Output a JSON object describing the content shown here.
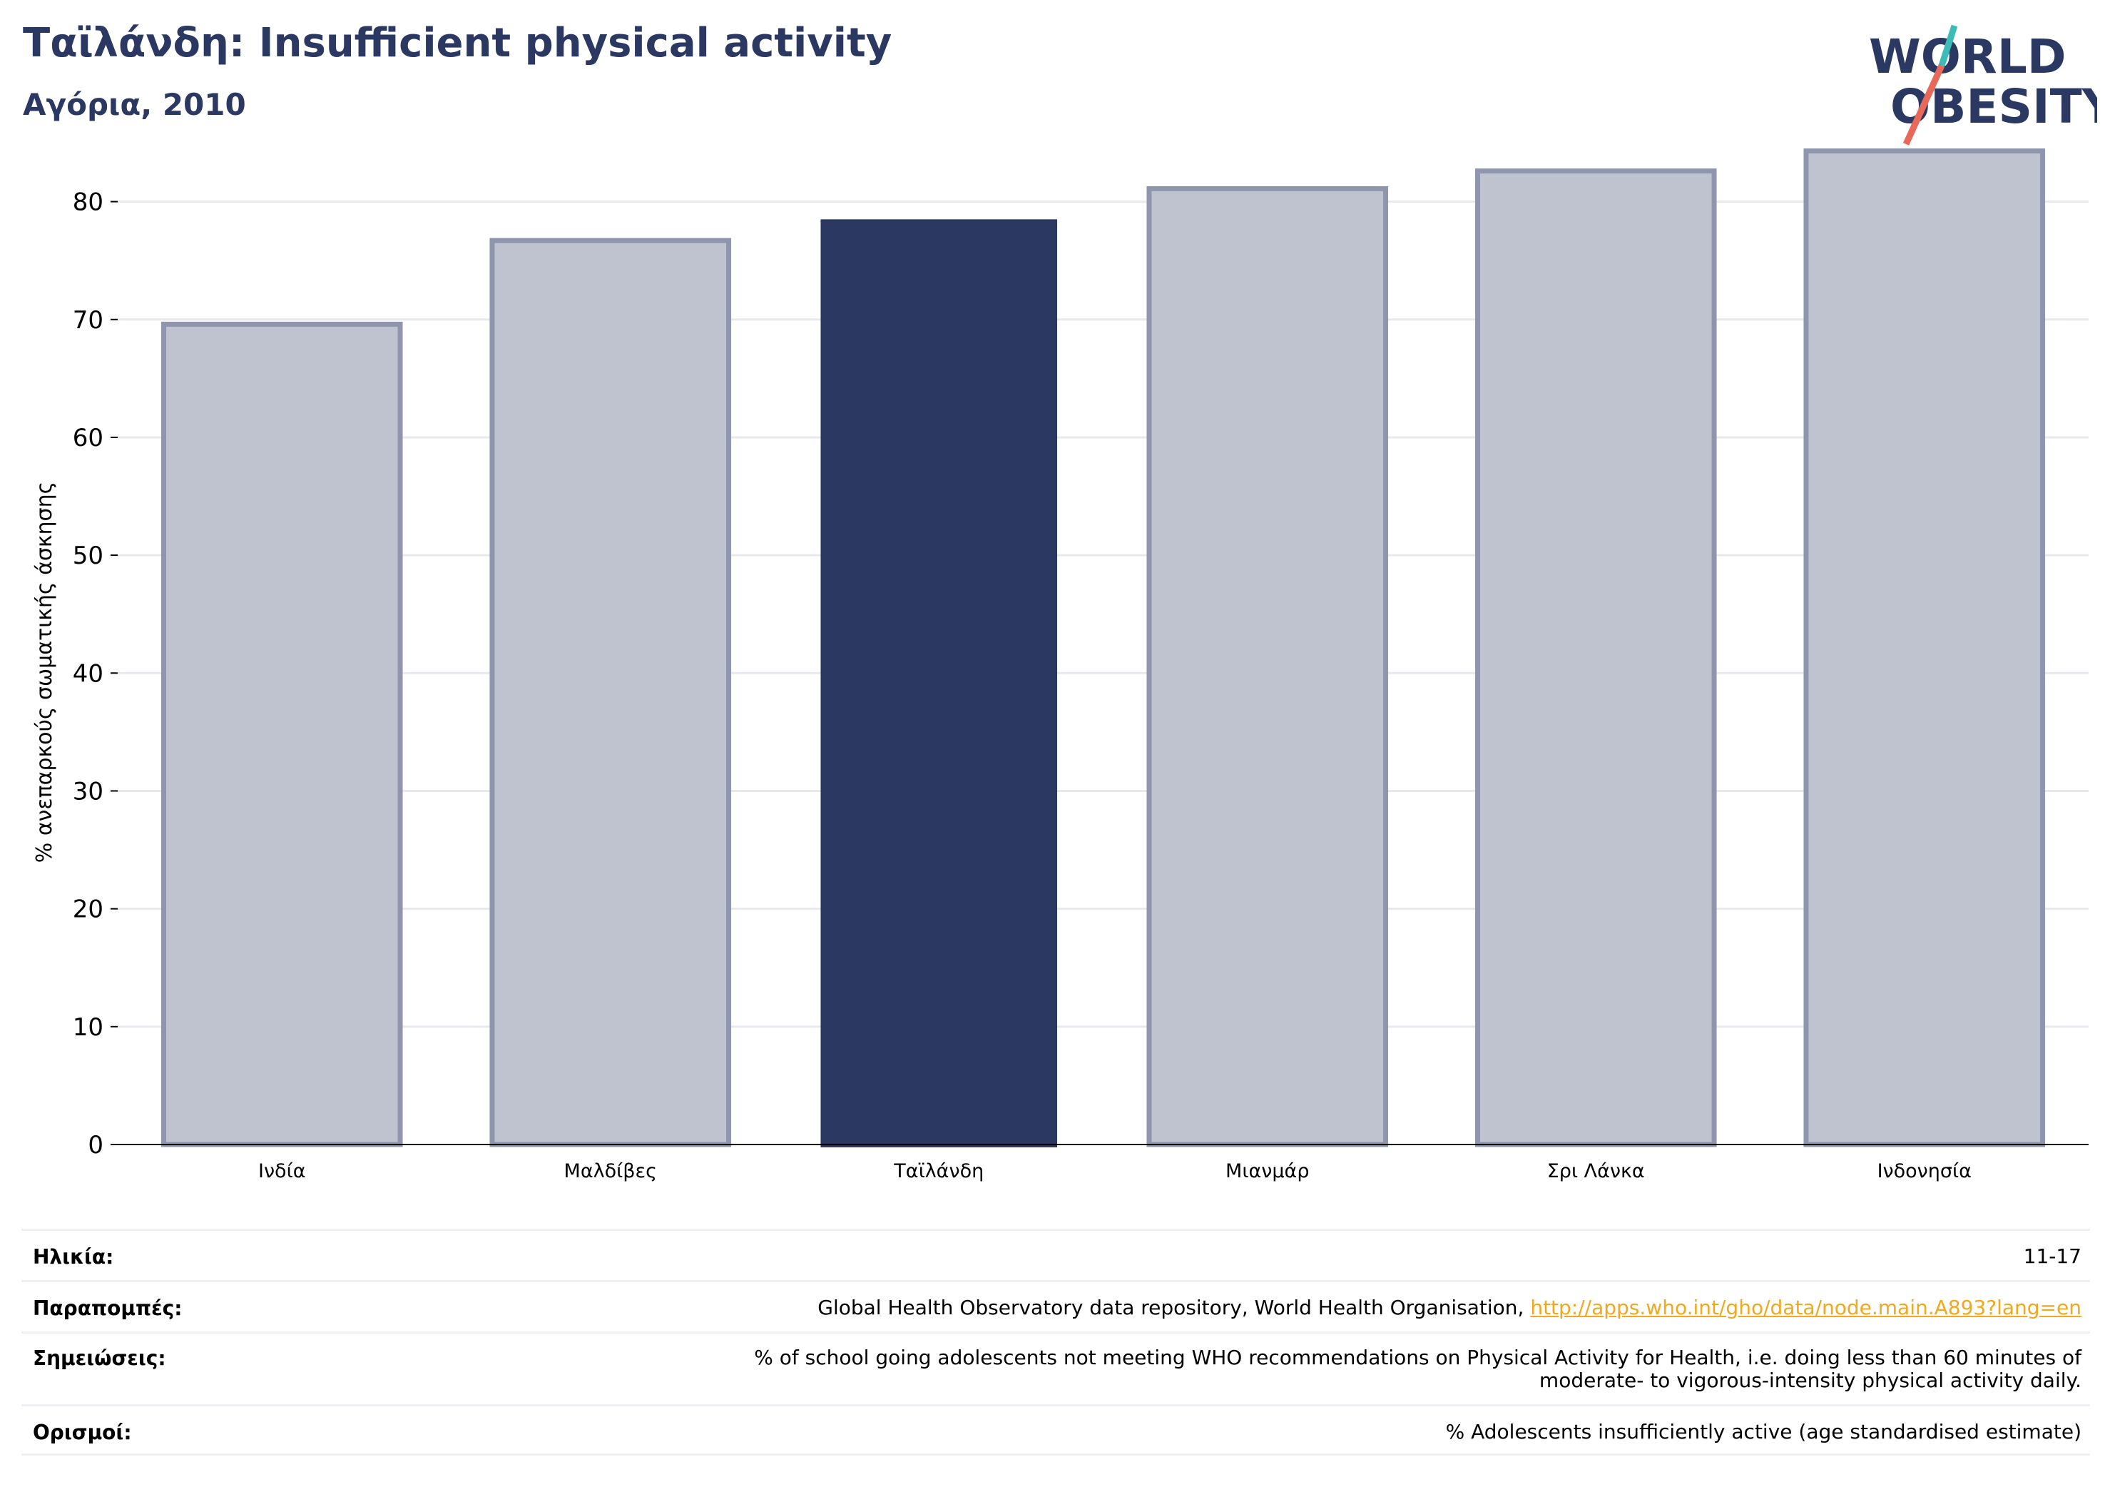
{
  "header": {
    "title": "Ταϊλάνδη: Insufficient physical activity",
    "subtitle": "Αγόρια, 2010"
  },
  "logo": {
    "line1": "WORLD",
    "line2": "OBESITY",
    "colors": {
      "text": "#2b3862",
      "slash_teal": "#3cbcb4",
      "slash_red": "#e8685a"
    }
  },
  "colors": {
    "highlight": "#2b3862",
    "bar": "#bfc3cf",
    "bar_border": "#8e95ad",
    "grid": "#e8e9ee",
    "axis": "#000000"
  },
  "chart_data": {
    "type": "bar",
    "categories": [
      "Ινδία",
      "Μαλδίβες",
      "Ταϊλάνδη",
      "Μιανμάρ",
      "Σρι Λάνκα",
      "Ινδονησία"
    ],
    "values": [
      69.6,
      76.7,
      78.5,
      81.1,
      82.6,
      84.3
    ],
    "highlight": "Ταϊλάνδη",
    "ylabel": "% ανεπαρκούς σωματικής άσκησης",
    "ylim": [
      0,
      85
    ],
    "yticks": [
      0,
      10,
      20,
      30,
      40,
      50,
      60,
      70,
      80
    ],
    "grid": true
  },
  "info": {
    "age_label": "Ηλικία:",
    "age_value": "11-17",
    "ref_label": "Παραπομπές:",
    "ref_text": "Global Health Observatory data repository, World Health Organisation, ",
    "ref_link": "http://apps.who.int/gho/data/node.main.A893?lang=en",
    "notes_label": "Σημειώσεις:",
    "notes_line1": "% of school going adolescents not meeting WHO recommendations on Physical Activity for Health, i.e. doing less than 60 minutes of",
    "notes_line2": "moderate- to vigorous-intensity physical activity daily.",
    "def_label": "Ορισμοί:",
    "def_value": "% Adolescents insufficiently active (age standardised estimate)"
  }
}
